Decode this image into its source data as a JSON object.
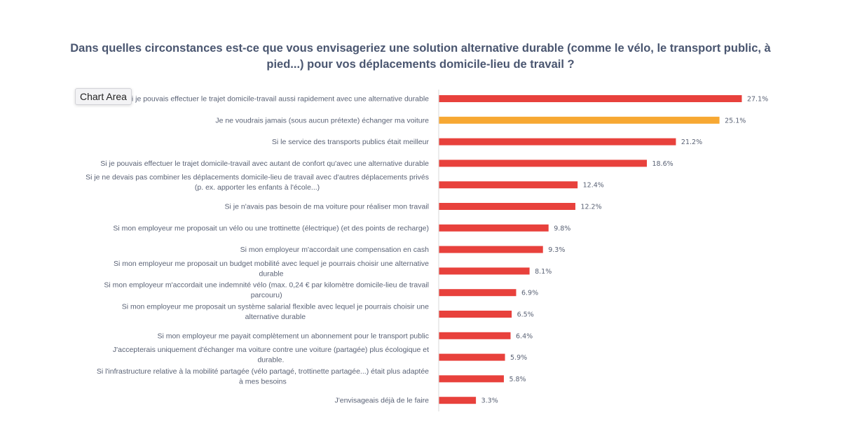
{
  "chart_data": {
    "type": "bar",
    "orientation": "horizontal",
    "title": "Dans quelles circonstances est-ce que vous envisageriez une solution alternative durable (comme le vélo, le transport public, à pied...) pour vos déplacements domicile-lieu de travail ?",
    "categories": [
      [
        "Si je pouvais effectuer le trajet domicile-travail aussi rapidement avec une alternative durable"
      ],
      [
        "Je ne voudrais jamais (sous aucun prétexte) échanger ma voiture"
      ],
      [
        "Si le service des transports publics était meilleur"
      ],
      [
        "Si je pouvais effectuer le trajet domicile-travail avec autant de confort qu'avec une alternative durable"
      ],
      [
        "Si je ne devais pas combiner les déplacements domicile-lieu de travail avec d'autres déplacements privés",
        "(p. ex. apporter les enfants à l'école...)"
      ],
      [
        "Si je n'avais pas besoin de ma voiture pour réaliser mon travail"
      ],
      [
        "Si mon employeur me proposait un vélo ou une trottinette (électrique) (et des points de recharge)"
      ],
      [
        "Si mon employeur m'accordait une compensation en cash"
      ],
      [
        "Si mon employeur me proposait un budget mobilité avec lequel je pourrais choisir une alternative",
        "durable"
      ],
      [
        "Si mon employeur m'accordait une indemnité vélo (max. 0,24 € par kilomètre domicile-lieu de travail",
        "parcouru)"
      ],
      [
        "Si mon employeur me proposait un système salarial flexible avec lequel je pourrais choisir une",
        "alternative durable"
      ],
      [
        "Si mon employeur me payait complètement un abonnement pour le transport public"
      ],
      [
        "J'accepterais uniquement d'échanger ma voiture contre une voiture (partagée) plus écologique et",
        "durable."
      ],
      [
        "Si l'infrastructure relative à la mobilité partagée (vélo partagé, trottinette partagée...) était plus adaptée",
        "à mes besoins"
      ],
      [
        "J'envisageais déjà de le faire"
      ]
    ],
    "values": [
      27.1,
      25.1,
      21.2,
      18.6,
      12.4,
      12.2,
      9.8,
      9.3,
      8.1,
      6.9,
      6.5,
      6.4,
      5.9,
      5.8,
      3.3
    ],
    "value_labels": [
      "27.1%",
      "25.1%",
      "21.2%",
      "18.6%",
      "12.4%",
      "12.2%",
      "9.8%",
      "9.3%",
      "8.1%",
      "6.9%",
      "6.5%",
      "6.4%",
      "5.9%",
      "5.8%",
      "3.3%"
    ],
    "unit": "%",
    "xlim": [
      0,
      36
    ],
    "grid": false,
    "legend": "none",
    "colors": {
      "default": "#e8413c",
      "highlight": "#f7a833",
      "highlight_index": 1
    }
  },
  "tooltip": {
    "text": "Chart Area"
  }
}
